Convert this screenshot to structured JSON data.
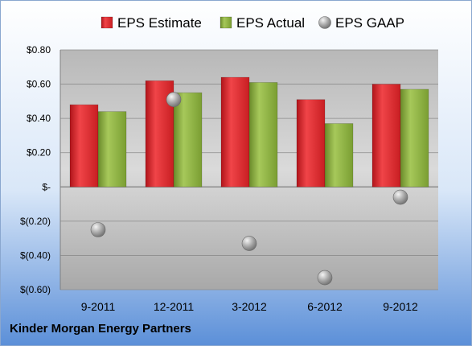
{
  "chart_data": {
    "type": "bar",
    "categories": [
      "9-2011",
      "12-2011",
      "3-2012",
      "6-2012",
      "9-2012"
    ],
    "series": [
      {
        "name": "EPS Estimate",
        "kind": "bar",
        "color": "#e8262a",
        "values": [
          0.48,
          0.62,
          0.64,
          0.51,
          0.6
        ]
      },
      {
        "name": "EPS Actual",
        "kind": "bar",
        "color": "#8fb53e",
        "values": [
          0.44,
          0.55,
          0.61,
          0.37,
          0.57
        ]
      },
      {
        "name": "EPS GAAP",
        "kind": "point",
        "color": "#a0a0a0",
        "values": [
          -0.25,
          0.51,
          -0.33,
          -0.53,
          -0.06
        ]
      }
    ],
    "ylim": [
      -0.6,
      0.8
    ],
    "yticks": [
      {
        "value": 0.8,
        "label": "$0.80"
      },
      {
        "value": 0.6,
        "label": "$0.60"
      },
      {
        "value": 0.4,
        "label": "$0.40"
      },
      {
        "value": 0.2,
        "label": "$0.20"
      },
      {
        "value": 0,
        "label": "$-"
      },
      {
        "value": -0.2,
        "label": "$(0.20)"
      },
      {
        "value": -0.4,
        "label": "$(0.40)"
      },
      {
        "value": -0.6,
        "label": "$(0.60)"
      }
    ],
    "grid": true,
    "legend": "top"
  },
  "company_name": "Kinder Morgan Energy Partners"
}
